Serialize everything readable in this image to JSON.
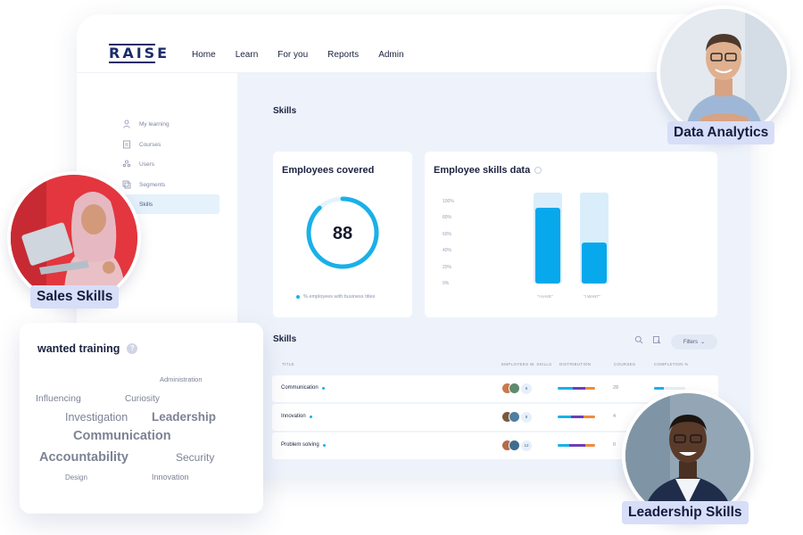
{
  "app": {
    "logo_text": "RAISE",
    "nav": [
      "Home",
      "Learn",
      "For you",
      "Reports",
      "Admin"
    ]
  },
  "sidebar": {
    "items": [
      {
        "label": "My learning",
        "icon": "person-icon",
        "active": false
      },
      {
        "label": "Courses",
        "icon": "document-icon",
        "active": false
      },
      {
        "label": "Users",
        "icon": "users-icon",
        "active": false
      },
      {
        "label": "Segments",
        "icon": "segments-icon",
        "active": false
      },
      {
        "label": "Skills",
        "icon": "skills-icon",
        "active": true
      }
    ]
  },
  "page": {
    "title": "Skills"
  },
  "employees_covered": {
    "title": "Employees covered",
    "value": "88",
    "percent": 88,
    "legend": "% employees with business titles"
  },
  "skills_data": {
    "title": "Employee skills data"
  },
  "chart_data": {
    "type": "bar",
    "title": "Employee skills data",
    "categories": [
      "\"I HAVE\"",
      "\"I WANT\""
    ],
    "values": [
      92,
      50
    ],
    "track_values": [
      100,
      100
    ],
    "yticks": [
      "100%",
      "80%",
      "60%",
      "40%",
      "20%",
      "0%"
    ],
    "ylim": [
      0,
      100
    ],
    "xlabel": "",
    "ylabel": "",
    "grid": false,
    "colors": {
      "bar": "#08a8ec",
      "track": "#d9eefa"
    }
  },
  "skills_table": {
    "title": "Skills",
    "filters_label": "Filters",
    "columns": [
      "TITLE",
      "EMPLOYEES W. SKILLS",
      "DISTRIBUTION",
      "COURSES",
      "COMPLETION %"
    ],
    "rows": [
      {
        "title": "Communication",
        "employees": "6",
        "courses": "28",
        "completion": 0.3
      },
      {
        "title": "Innovation",
        "employees": "8",
        "courses": "4",
        "completion": 0.2
      },
      {
        "title": "Problem solving",
        "employees": "12",
        "courses": "0",
        "completion": 0.0
      }
    ]
  },
  "wanted_training": {
    "title": "wanted training",
    "words": [
      "Administration",
      "Influencing",
      "Curiosity",
      "Investigation",
      "Leadership",
      "Communication",
      "Accountability",
      "Security",
      "Design",
      "Innovation"
    ]
  },
  "badges": {
    "data_analytics": "Data Analytics",
    "sales_skills": "Sales Skills",
    "leadership_skills": "Leadership Skills"
  },
  "colors": {
    "accent": "#08a8ec",
    "brand": "#1d2b6b",
    "badge_bg": "#d7def8",
    "distribution": [
      "#1ab0e8",
      "#6a3fb8",
      "#f08a3c"
    ]
  }
}
